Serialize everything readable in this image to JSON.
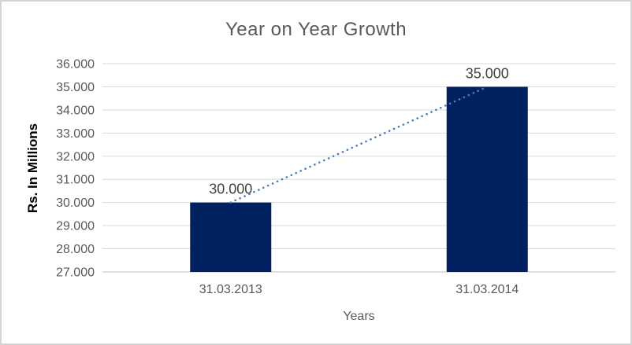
{
  "chart_data": {
    "type": "bar",
    "title": "Year on Year Growth",
    "xlabel": "Years",
    "ylabel": "Rs. In Millions",
    "categories": [
      "31.03.2013",
      "31.03.2014"
    ],
    "values": [
      30000,
      35000
    ],
    "value_labels": [
      "30.000",
      "35.000"
    ],
    "ylim": [
      27000,
      36000
    ],
    "ytick_step": 1000,
    "ytick_values": [
      27000,
      28000,
      29000,
      30000,
      31000,
      32000,
      33000,
      34000,
      35000,
      36000
    ],
    "ytick_labels": [
      "27.000",
      "28.000",
      "29.000",
      "30.000",
      "31.000",
      "32.000",
      "33.000",
      "34.000",
      "35.000",
      "36.000"
    ],
    "grid": true,
    "legend": false,
    "trendline": {
      "type": "linear",
      "style": "dotted"
    },
    "colors": {
      "bar": "#002060",
      "trendline": "#4a7ebb",
      "gridline": "#d9d9d9",
      "axis_line": "#bfbfbf",
      "title_text": "#595959",
      "tick_text": "#595959",
      "data_label_text": "#404040",
      "frame_border": "#d6d4d4"
    }
  }
}
